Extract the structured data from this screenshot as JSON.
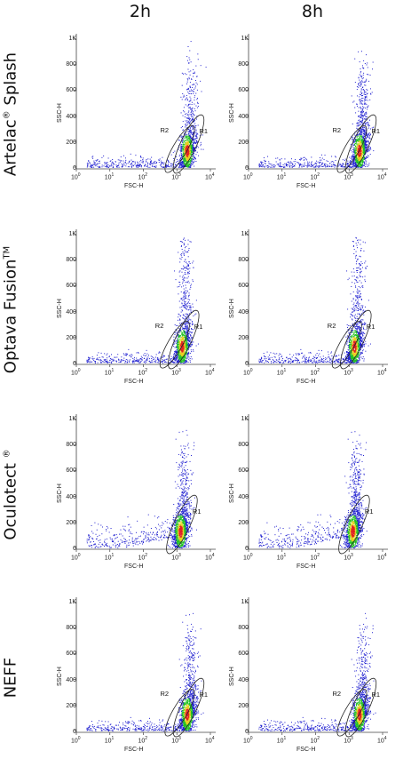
{
  "columns": [
    "2h",
    "8h"
  ],
  "rows": [
    {
      "label": "Artelac",
      "sup": "®",
      "label_rest": " Splash",
      "gates": [
        "R2",
        "R1"
      ]
    },
    {
      "label": "Optava Fusion",
      "sup": "TM",
      "label_rest": "",
      "gates": [
        "R2",
        "R1"
      ]
    },
    {
      "label": "Oculotect ",
      "sup": "®",
      "label_rest": "",
      "gates": [
        "R1"
      ]
    },
    {
      "label": "NEFF",
      "sup": "",
      "label_rest": "",
      "gates": [
        "R2",
        "R1"
      ]
    }
  ],
  "axes": {
    "x_title": "FSC-H",
    "y_title": "SSC-H",
    "y_ticks": [
      "0",
      "200",
      "400",
      "600",
      "800",
      "1K"
    ],
    "x_ticks": [
      {
        "base": "10",
        "exp": "0"
      },
      {
        "base": "10",
        "exp": "1"
      },
      {
        "base": "10",
        "exp": "2"
      },
      {
        "base": "10",
        "exp": "3"
      },
      {
        "base": "10",
        "exp": "4"
      }
    ]
  },
  "chart_data": [
    {
      "type": "scatter",
      "row": "Artelac® Splash",
      "time": "2h",
      "x_scale": "log",
      "xlim": [
        1,
        10000
      ],
      "ylim": [
        0,
        1000
      ],
      "xlabel": "FSC-H",
      "ylabel": "SSC-H",
      "gates": [
        "R2",
        "R1"
      ]
    },
    {
      "type": "scatter",
      "row": "Artelac® Splash",
      "time": "8h",
      "x_scale": "log",
      "xlim": [
        1,
        10000
      ],
      "ylim": [
        0,
        1000
      ],
      "xlabel": "FSC-H",
      "ylabel": "SSC-H",
      "gates": [
        "R2",
        "R1"
      ]
    },
    {
      "type": "scatter",
      "row": "Optava FusionTM",
      "time": "2h",
      "x_scale": "log",
      "xlim": [
        1,
        10000
      ],
      "ylim": [
        0,
        1000
      ],
      "xlabel": "FSC-H",
      "ylabel": "SSC-H",
      "gates": [
        "R2",
        "R1"
      ]
    },
    {
      "type": "scatter",
      "row": "Optava FusionTM",
      "time": "8h",
      "x_scale": "log",
      "xlim": [
        1,
        10000
      ],
      "ylim": [
        0,
        1000
      ],
      "xlabel": "FSC-H",
      "ylabel": "SSC-H",
      "gates": [
        "R2",
        "R1"
      ]
    },
    {
      "type": "scatter",
      "row": "Oculotect ®",
      "time": "2h",
      "x_scale": "log",
      "xlim": [
        1,
        10000
      ],
      "ylim": [
        0,
        1000
      ],
      "xlabel": "FSC-H",
      "ylabel": "SSC-H",
      "gates": [
        "R1"
      ]
    },
    {
      "type": "scatter",
      "row": "Oculotect ®",
      "time": "8h",
      "x_scale": "log",
      "xlim": [
        1,
        10000
      ],
      "ylim": [
        0,
        1000
      ],
      "xlabel": "FSC-H",
      "ylabel": "SSC-H",
      "gates": [
        "R1"
      ]
    },
    {
      "type": "scatter",
      "row": "NEFF",
      "time": "2h",
      "x_scale": "log",
      "xlim": [
        1,
        10000
      ],
      "ylim": [
        0,
        1000
      ],
      "xlabel": "FSC-H",
      "ylabel": "SSC-H",
      "gates": [
        "R2",
        "R1"
      ]
    },
    {
      "type": "scatter",
      "row": "NEFF",
      "time": "8h",
      "x_scale": "log",
      "xlim": [
        1,
        10000
      ],
      "ylim": [
        0,
        1000
      ],
      "xlabel": "FSC-H",
      "ylabel": "SSC-H",
      "gates": [
        "R2",
        "R1"
      ]
    }
  ],
  "colors": {
    "low": "#2020d0",
    "mid": "#20c020",
    "high": "#e8d020",
    "peak": "#e02020",
    "gate": "#222222"
  }
}
